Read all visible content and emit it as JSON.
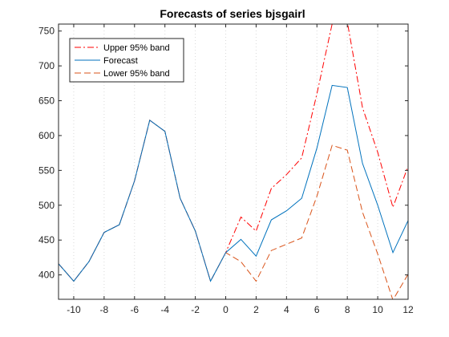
{
  "chart_data": {
    "type": "line",
    "title": "Forecasts of series bjsgairl",
    "xlabel": "",
    "ylabel": "",
    "xlim": [
      -11,
      12
    ],
    "ylim": [
      365,
      760
    ],
    "xticks": [
      -10,
      -8,
      -6,
      -4,
      -2,
      0,
      2,
      4,
      6,
      8,
      10,
      12
    ],
    "yticks": [
      400,
      450,
      500,
      550,
      600,
      650,
      700,
      750
    ],
    "vertical_grid": "dotted",
    "legend_position": "top-left",
    "series": [
      {
        "name": "Upper 95% band",
        "color": "#ff0000",
        "style": "dashdot",
        "x": [
          -11,
          -10,
          -9,
          -8,
          -7,
          -6,
          -5,
          -4,
          -3,
          -2,
          -1,
          0,
          1,
          2,
          3,
          4,
          5,
          6,
          7,
          8,
          9,
          10,
          11,
          12
        ],
        "y": [
          416,
          391,
          419,
          461,
          472,
          535,
          622,
          606,
          510,
          463,
          391,
          432,
          483,
          463,
          524,
          544,
          568,
          660,
          760,
          763,
          640,
          576,
          497,
          556
        ]
      },
      {
        "name": "Forecast",
        "color": "#0072bd",
        "style": "solid",
        "x": [
          -11,
          -10,
          -9,
          -8,
          -7,
          -6,
          -5,
          -4,
          -3,
          -2,
          -1,
          0,
          1,
          2,
          3,
          4,
          5,
          6,
          7,
          8,
          9,
          10,
          11,
          12
        ],
        "y": [
          416,
          391,
          419,
          461,
          472,
          535,
          622,
          606,
          510,
          463,
          391,
          432,
          451,
          427,
          479,
          492,
          510,
          582,
          672,
          669,
          560,
          500,
          432,
          478
        ]
      },
      {
        "name": "Lower 95% band",
        "color": "#d95319",
        "style": "dashed",
        "x": [
          -11,
          -10,
          -9,
          -8,
          -7,
          -6,
          -5,
          -4,
          -3,
          -2,
          -1,
          0,
          1,
          2,
          3,
          4,
          5,
          6,
          7,
          8,
          9,
          10,
          11,
          12
        ],
        "y": [
          416,
          391,
          419,
          461,
          472,
          535,
          622,
          606,
          510,
          463,
          391,
          432,
          419,
          391,
          435,
          444,
          453,
          513,
          586,
          579,
          490,
          430,
          364,
          401
        ]
      }
    ]
  }
}
